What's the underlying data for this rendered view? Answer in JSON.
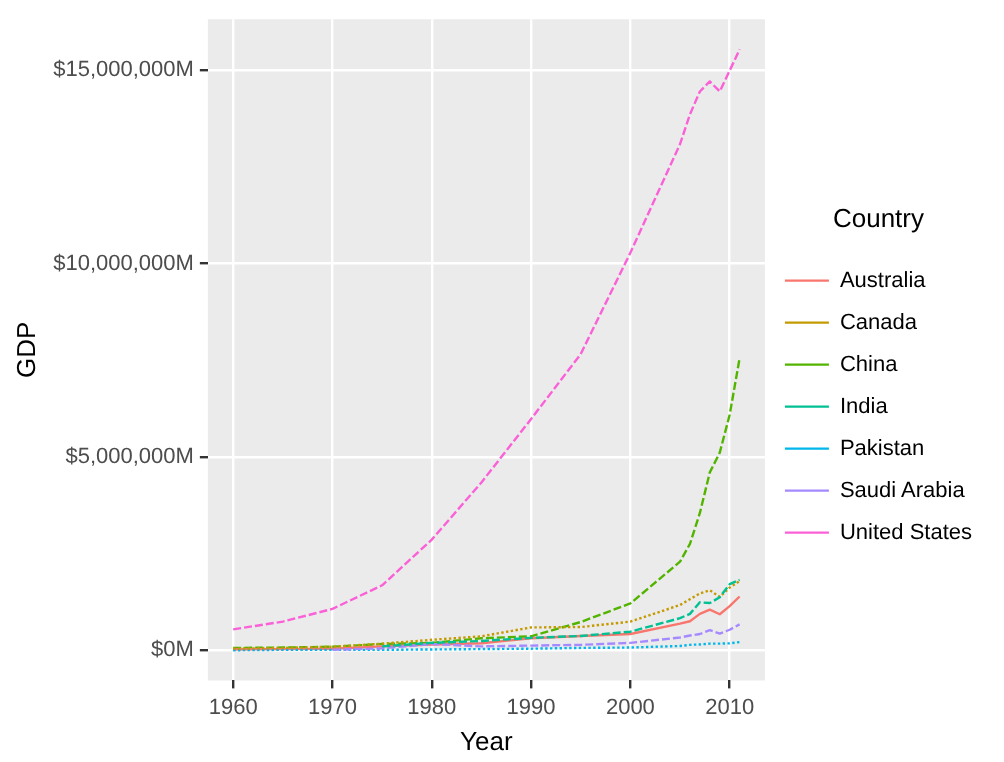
{
  "chart_data": {
    "type": "line",
    "xlabel": "Year",
    "ylabel": "GDP",
    "legend_title": "Country",
    "legend": "right",
    "grid": true,
    "marker": "none",
    "x": [
      1960,
      1965,
      1970,
      1975,
      1980,
      1985,
      1990,
      1995,
      2000,
      2005,
      2006,
      2007,
      2008,
      2009,
      2010,
      2011
    ],
    "xlim": [
      1957.45,
      2013.55
    ],
    "xticks": [
      1960,
      1970,
      1980,
      1990,
      2000,
      2010
    ],
    "ylim": [
      -780000,
      16320000
    ],
    "yticks": [
      {
        "value": 0,
        "label": "$0M"
      },
      {
        "value": 5000000,
        "label": "$5,000,000M"
      },
      {
        "value": 10000000,
        "label": "$10,000,000M"
      },
      {
        "value": 15000000,
        "label": "$15,000,000M"
      }
    ],
    "series": [
      {
        "name": "Australia",
        "color": "#f8766d",
        "line_style": "solid",
        "values": [
          20000,
          30000,
          40000,
          100000,
          150000,
          180000,
          310000,
          370000,
          420000,
          690000,
          750000,
          940000,
          1050000,
          930000,
          1140000,
          1390000
        ]
      },
      {
        "name": "Canada",
        "color": "#c49a00",
        "line_style": "dotted",
        "values": [
          40000,
          60000,
          90000,
          170000,
          270000,
          360000,
          590000,
          600000,
          740000,
          1170000,
          1320000,
          1470000,
          1550000,
          1380000,
          1620000,
          1790000
        ]
      },
      {
        "name": "China",
        "color": "#53b400",
        "line_style": "dashed",
        "values": [
          60000,
          70000,
          90000,
          160000,
          190000,
          310000,
          360000,
          730000,
          1210000,
          2290000,
          2750000,
          3550000,
          4600000,
          5110000,
          6090000,
          7550000
        ]
      },
      {
        "name": "India",
        "color": "#00c094",
        "line_style": "dashed",
        "values": [
          null,
          null,
          null,
          100000,
          190000,
          240000,
          320000,
          370000,
          480000,
          830000,
          940000,
          1240000,
          1220000,
          1370000,
          1710000,
          1820000
        ]
      },
      {
        "name": "Pakistan",
        "color": "#00b6eb",
        "line_style": "dotted",
        "values": [
          0,
          10000,
          10000,
          10000,
          20000,
          30000,
          40000,
          60000,
          70000,
          110000,
          140000,
          150000,
          170000,
          170000,
          180000,
          210000
        ]
      },
      {
        "name": "Saudi Arabia",
        "color": "#a58aff",
        "line_style": "dashed",
        "values": [
          null,
          null,
          10000,
          50000,
          160000,
          100000,
          120000,
          140000,
          190000,
          330000,
          380000,
          420000,
          520000,
          430000,
          530000,
          670000
        ]
      },
      {
        "name": "United States",
        "color": "#fb61d7",
        "line_style": "dashed",
        "values": [
          540000,
          740000,
          1070000,
          1680000,
          2860000,
          4340000,
          5980000,
          7660000,
          10280000,
          13090000,
          13860000,
          14450000,
          14710000,
          14450000,
          14990000,
          15540000
        ]
      }
    ]
  }
}
